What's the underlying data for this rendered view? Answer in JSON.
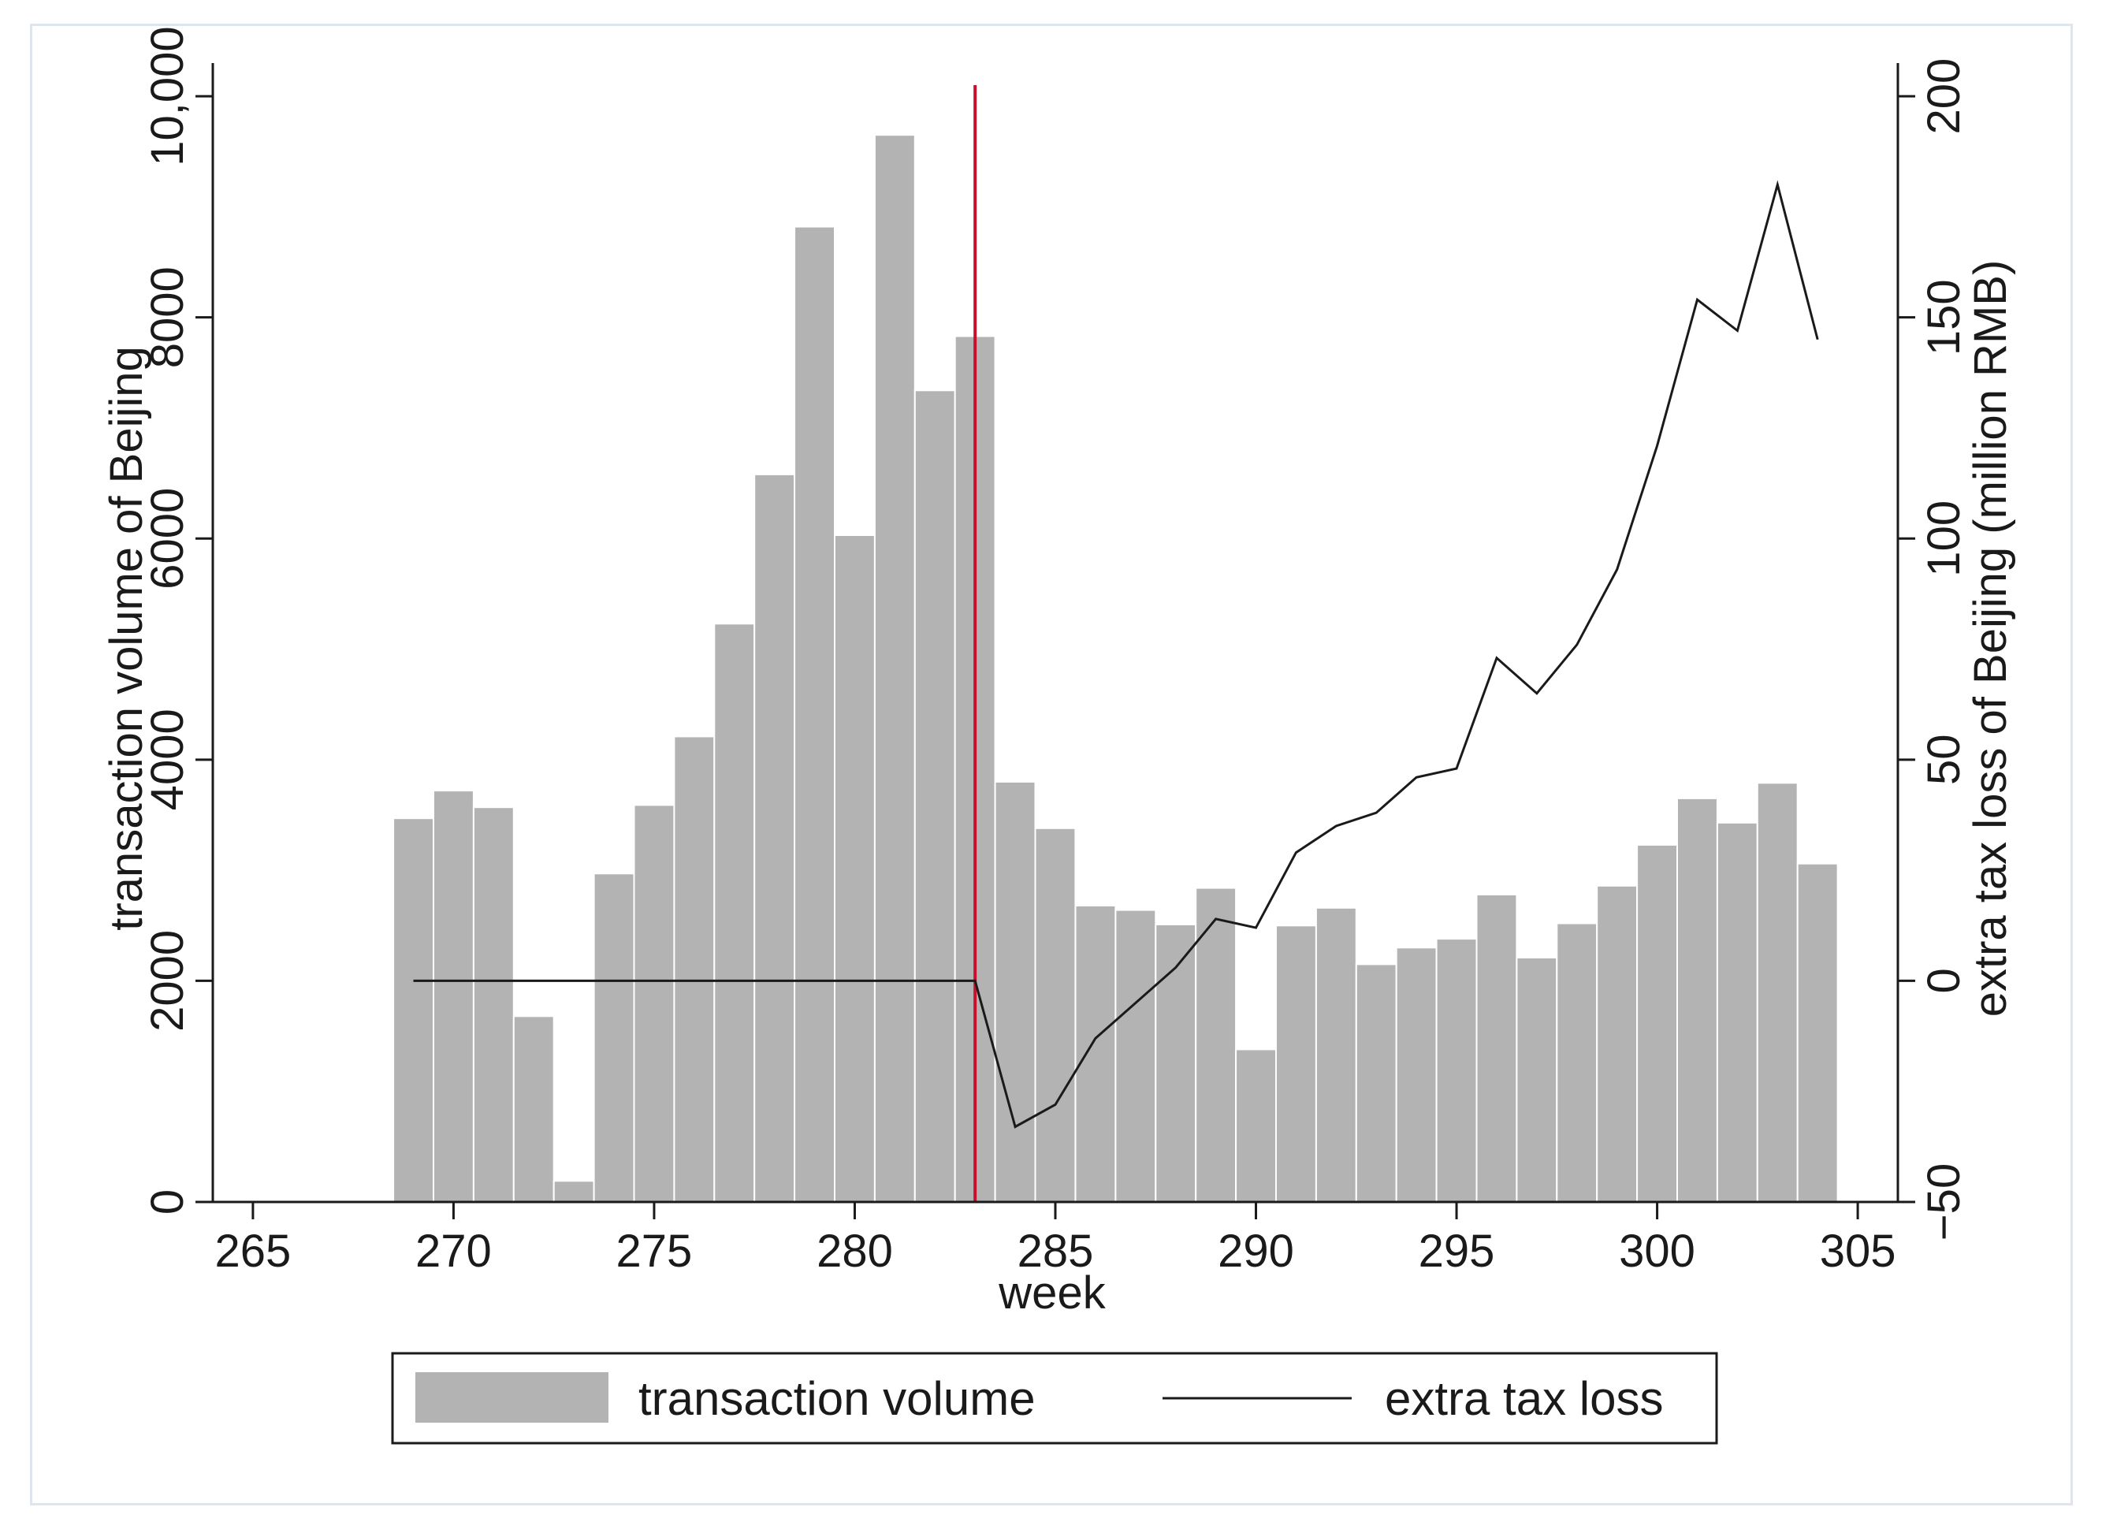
{
  "chart_data": {
    "type": "bar",
    "xlabel": "week",
    "ylabel": "transaction volume of Beijing",
    "y2label": "extra tax loss of Beijing (million RMB)",
    "xlim": [
      264,
      306
    ],
    "ylim": [
      0,
      10300
    ],
    "y2lim": [
      -50,
      207.5
    ],
    "xticks": [
      265,
      270,
      275,
      280,
      285,
      290,
      295,
      300,
      305
    ],
    "yticks": [
      0,
      2000,
      4000,
      6000,
      8000,
      10000
    ],
    "ytick_labels": [
      "0",
      "2000",
      "4000",
      "6000",
      "8000",
      "10,000"
    ],
    "y2ticks": [
      -50,
      0,
      50,
      100,
      150,
      200
    ],
    "y2tick_labels": [
      "−50",
      "0",
      "50",
      "100",
      "150",
      "200"
    ],
    "reference_line": {
      "x": 283,
      "color": "#c8102e"
    },
    "bar_color": "#b3b3b3",
    "line_color": "#1a1a1a",
    "legend": {
      "position": "bottom",
      "items": [
        "transaction volume",
        "extra tax loss"
      ]
    },
    "series": [
      {
        "name": "transaction volume",
        "type": "bar",
        "axis": "left",
        "x": [
          269,
          270,
          271,
          272,
          273,
          274,
          275,
          276,
          277,
          278,
          279,
          280,
          281,
          282,
          283,
          284,
          285,
          286,
          287,
          288,
          289,
          290,
          291,
          292,
          293,
          294,
          295,
          296,
          297,
          298,
          299,
          300,
          301,
          302,
          303,
          304
        ],
        "values": [
          3470,
          3720,
          3570,
          1680,
          190,
          2970,
          3590,
          4210,
          5230,
          6580,
          8820,
          6030,
          9650,
          7340,
          7830,
          3800,
          3380,
          2680,
          2640,
          2510,
          2840,
          1380,
          2500,
          2660,
          2150,
          2300,
          2380,
          2780,
          2210,
          2520,
          2860,
          3230,
          3650,
          3430,
          3790,
          3060
        ]
      },
      {
        "name": "extra tax loss",
        "type": "line",
        "axis": "right",
        "x": [
          269,
          270,
          271,
          272,
          273,
          274,
          275,
          276,
          277,
          278,
          279,
          280,
          281,
          282,
          283,
          284,
          285,
          286,
          287,
          288,
          289,
          290,
          291,
          292,
          293,
          294,
          295,
          296,
          297,
          298,
          299,
          300,
          301,
          302,
          303,
          304
        ],
        "values": [
          0,
          0,
          0,
          0,
          0,
          0,
          0,
          0,
          0,
          0,
          0,
          0,
          0,
          0,
          0,
          -33,
          -28,
          -13,
          -5,
          3,
          14,
          12,
          29,
          35,
          38,
          46,
          48,
          73,
          65,
          76,
          93,
          121,
          154,
          147,
          180,
          145
        ]
      }
    ]
  }
}
